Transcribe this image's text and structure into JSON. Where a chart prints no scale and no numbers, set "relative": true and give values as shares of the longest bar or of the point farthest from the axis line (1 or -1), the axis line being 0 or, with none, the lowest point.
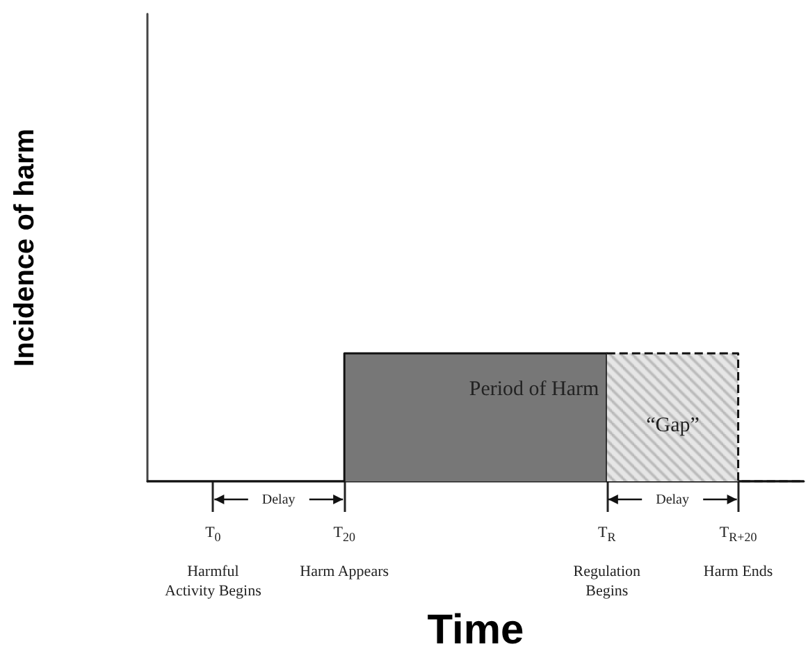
{
  "chart_data": {
    "type": "step",
    "relative": true,
    "xlabel": "Time",
    "ylabel": "Incidence of harm",
    "categories": [
      null,
      "T$_{0}$\n\nHarmful\nActivity Begins",
      null,
      "T$_{20}$\n\nHarm Appears",
      null,
      null,
      null,
      "T$_{R}$\n\nRegulation\nBegins",
      null,
      "T$_{R+20}$\n\nHarm Ends",
      null
    ],
    "series": [
      {
        "name": "Period of Harm",
        "type": "area",
        "color": "#777777",
        "values": [
          0,
          0,
          0,
          1,
          1,
          1,
          1,
          0,
          0,
          0,
          0
        ]
      },
      {
        "name": "“Gap”",
        "type": "area",
        "color": "#b5b5b5",
        "line_style": "dashed",
        "values": [
          null,
          null,
          null,
          null,
          null,
          null,
          null,
          1,
          1,
          0,
          0
        ]
      }
    ],
    "annotations": [
      "Delay",
      "Delay"
    ],
    "legend": false,
    "grid": false
  }
}
